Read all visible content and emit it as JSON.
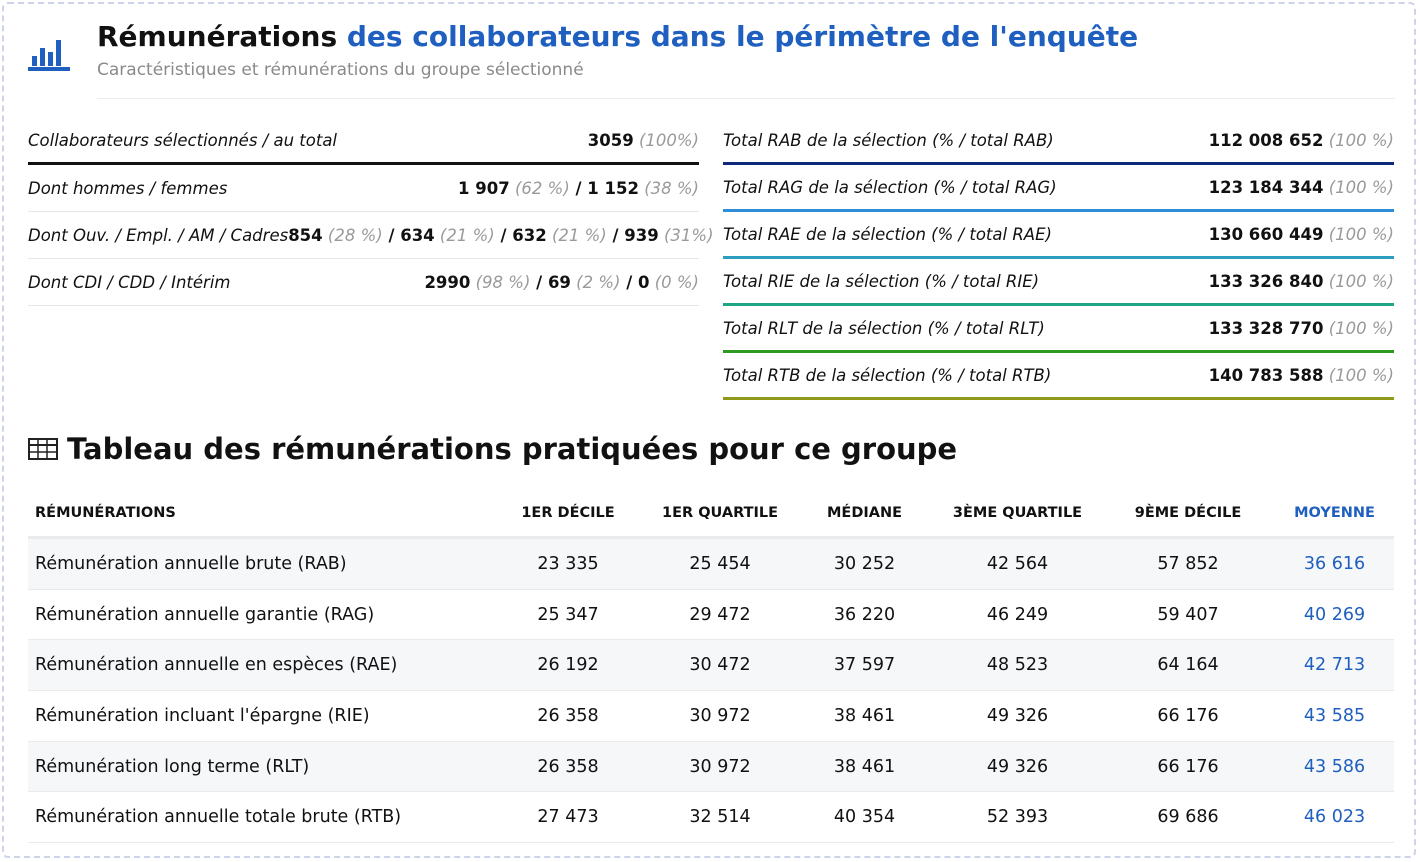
{
  "header": {
    "title_bold": "Rémunérations",
    "title_accent": "des collaborateurs dans le périmètre de l'enquête",
    "subtitle": "Caractéristiques et rémunérations du groupe sélectionné",
    "icon": "bar-chart-icon",
    "accent_color": "#1f5fbf"
  },
  "left_stats": [
    {
      "label": "Collaborateurs sélectionnés / au total",
      "parts": [
        {
          "v": "3059",
          "p": "(100%)"
        }
      ]
    },
    {
      "label": "Dont hommes / femmes",
      "parts": [
        {
          "v": "1 907",
          "p": "(62 %)"
        },
        {
          "v": "1 152",
          "p": "(38 %)"
        }
      ]
    },
    {
      "label": "Dont Ouv. / Empl. / AM / Cadres",
      "parts": [
        {
          "v": "854",
          "p": "(28 %)"
        },
        {
          "v": "634",
          "p": "(21 %)"
        },
        {
          "v": "632",
          "p": "(21 %)"
        },
        {
          "v": "939",
          "p": "(31%)"
        }
      ]
    },
    {
      "label": "Dont CDI / CDD / Intérim",
      "parts": [
        {
          "v": "2990",
          "p": "(98 %)"
        },
        {
          "v": "69",
          "p": "(2 %)"
        },
        {
          "v": "0",
          "p": "(0 %)"
        }
      ]
    }
  ],
  "right_stats": [
    {
      "label": "Total RAB de la sélection (% / total RAB)",
      "value": "112 008 652",
      "pct": "(100 %)",
      "color": "#0d2a7a"
    },
    {
      "label": "Total RAG de la sélection (% / total RAG)",
      "value": "123 184 344",
      "pct": "(100 %)",
      "color": "#2e8fd6"
    },
    {
      "label": "Total RAE de la sélection (% / total RAE)",
      "value": "130 660 449",
      "pct": "(100 %)",
      "color": "#2c9fc1"
    },
    {
      "label": "Total RIE de la sélection (% / total RIE)",
      "value": "133 326 840",
      "pct": "(100 %)",
      "color": "#1ea583"
    },
    {
      "label": "Total RLT de la sélection (% / total RLT)",
      "value": "133 328 770",
      "pct": "(100 %)",
      "color": "#2d9a1f"
    },
    {
      "label": "Total RTB de la sélection (% / total RTB)",
      "value": "140 783 588",
      "pct": "(100 %)",
      "color": "#8f9a1a"
    }
  ],
  "table": {
    "title": "Tableau des rémunérations pratiquées pour ce groupe",
    "icon": "table-icon",
    "columns": [
      "RÉMUNÉRATIONS",
      "1ER DÉCILE",
      "1ER QUARTILE",
      "MÉDIANE",
      "3ÈME QUARTILE",
      "9ÈME DÉCILE",
      "MOYENNE"
    ],
    "rows": [
      [
        "Rémunération annuelle brute (RAB)",
        "23 335",
        "25 454",
        "30 252",
        "42 564",
        "57 852",
        "36 616"
      ],
      [
        "Rémunération annuelle garantie (RAG)",
        "25 347",
        "29 472",
        "36 220",
        "46 249",
        "59 407",
        "40 269"
      ],
      [
        "Rémunération annuelle en espèces (RAE)",
        "26 192",
        "30 472",
        "37 597",
        "48 523",
        "64 164",
        "42 713"
      ],
      [
        "Rémunération incluant l'épargne (RIE)",
        "26 358",
        "30 972",
        "38 461",
        "49 326",
        "66 176",
        "43 585"
      ],
      [
        "Rémunération long terme (RLT)",
        "26 358",
        "30 972",
        "38 461",
        "49 326",
        "66 176",
        "43 586"
      ],
      [
        "Rémunération annuelle totale brute (RTB)",
        "27 473",
        "32 514",
        "40 354",
        "52 393",
        "69 686",
        "46 023"
      ]
    ]
  }
}
